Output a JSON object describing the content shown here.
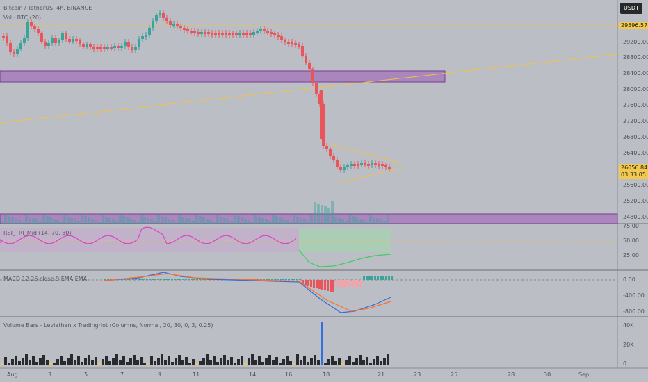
{
  "header": {
    "symbol_line": "Bitcoin / TetherUS, 4h, BINANCE",
    "volume_line": "Vol · BTC (20)",
    "currency_button": "USDT"
  },
  "price_axis": {
    "ticks": [
      "29200.00",
      "28800.00",
      "28400.00",
      "28000.00",
      "27600.00",
      "27200.00",
      "26800.00",
      "26400.00",
      "25600.00",
      "25200.00",
      "24800.00"
    ],
    "hline_label": "29596.57",
    "last_price": "26056.84",
    "countdown": "03:33:05"
  },
  "rsi": {
    "title": "RSI_TRI_Mid (14, 70, 30)",
    "ticks": [
      "75.00",
      "50.00",
      "25.00"
    ]
  },
  "macd": {
    "title": "MACD 12 26 close 9 EMA EMA",
    "ticks": [
      "0.00",
      "-400.00",
      "-800.00"
    ]
  },
  "vbars": {
    "title": "Volume Bars - Leviathan x Tradingriot  (Columns, Normal, 20, 30, 0, 3, 0.25)",
    "ticks": [
      "40K",
      "20K",
      "0"
    ]
  },
  "time_axis": {
    "labels": [
      "Aug",
      "3",
      "5",
      "7",
      "9",
      "11",
      "14",
      "16",
      "18",
      "21",
      "23",
      "25",
      "28",
      "30",
      "Sep"
    ]
  },
  "colors": {
    "up": "#3aa39a",
    "down": "#e8555a",
    "zone": "#9b59b6",
    "trendline": "#f0c24a",
    "rsi_line": "#e040c8",
    "macd_line": "#2f6fe0",
    "signal_line": "#ff6d2b"
  }
}
